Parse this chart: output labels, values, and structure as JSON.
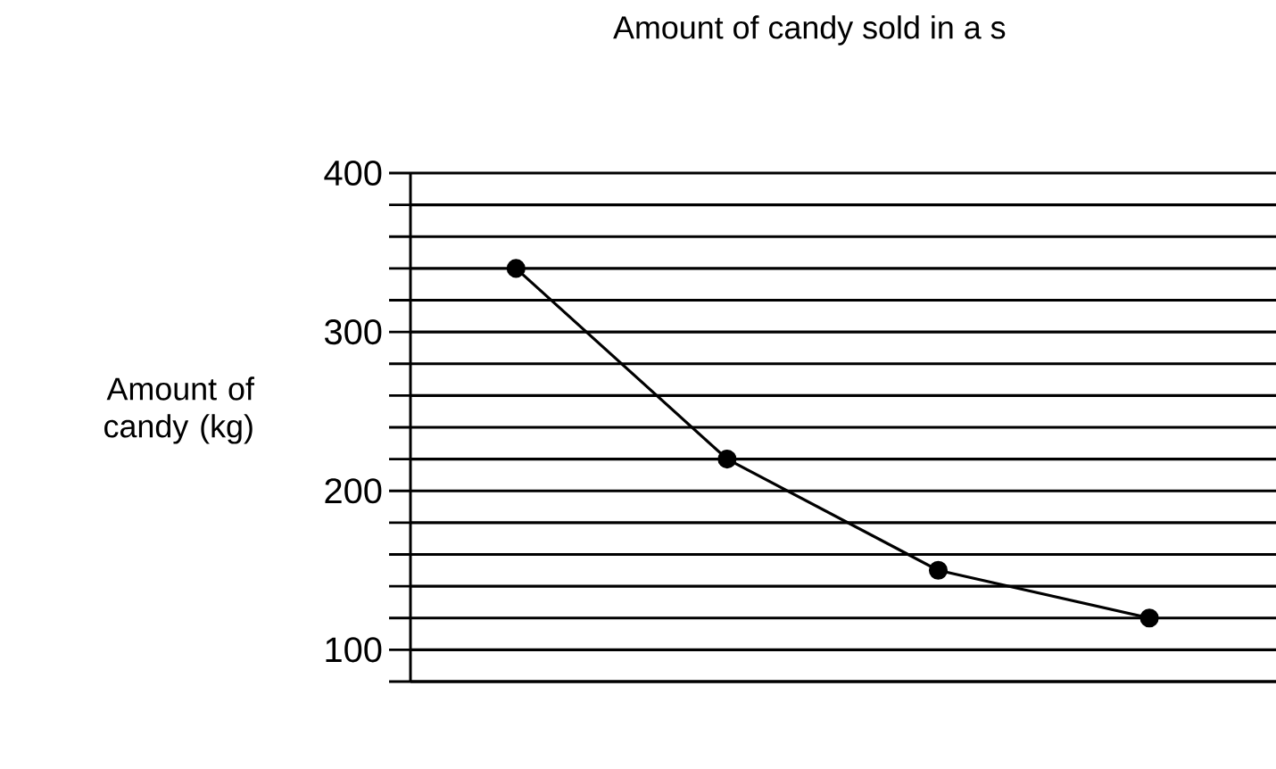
{
  "chart_data": {
    "type": "line",
    "title": "Amount of candy sold in a s",
    "ylabel": "Amount of candy (kg)",
    "categories": [
      null,
      null,
      null,
      null
    ],
    "series": [
      {
        "color": "#000000",
        "values": [
          340,
          220,
          150,
          120
        ]
      }
    ],
    "ylim": [
      80,
      400
    ],
    "yticks": [
      {
        "value": 80,
        "label": null
      },
      100,
      {
        "value": 120,
        "label": null
      },
      {
        "value": 140,
        "label": null
      },
      {
        "value": 160,
        "label": null
      },
      {
        "value": 180,
        "label": null
      },
      200,
      {
        "value": 220,
        "label": null
      },
      {
        "value": 240,
        "label": null
      },
      {
        "value": 260,
        "label": null
      },
      {
        "value": 280,
        "label": null
      },
      300,
      {
        "value": 320,
        "label": null
      },
      {
        "value": 340,
        "label": null
      },
      {
        "value": 360,
        "label": null
      },
      {
        "value": 380,
        "label": null
      },
      400
    ],
    "grid": "y",
    "marker": "circle",
    "line_style": "solid"
  }
}
